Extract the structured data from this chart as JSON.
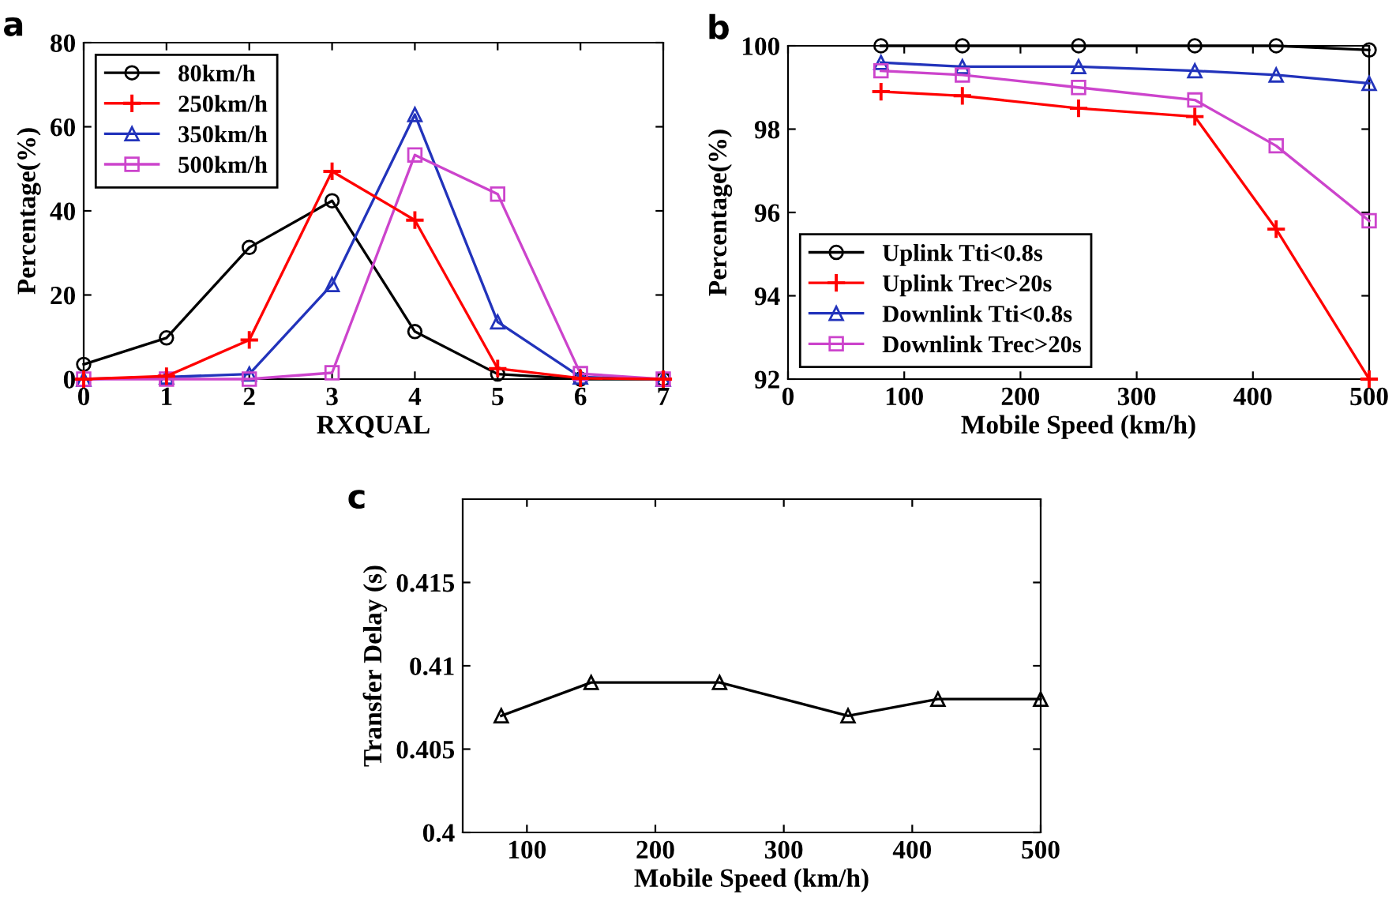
{
  "chart_data": [
    {
      "type": "line",
      "title": "a",
      "xlabel": "RXQUAL",
      "ylabel": "Percentage(%)",
      "x": [
        0,
        1,
        2,
        3,
        4,
        5,
        6,
        7
      ],
      "xlim": [
        0,
        7
      ],
      "xticks": [
        0,
        1,
        2,
        3,
        4,
        5,
        6,
        7
      ],
      "ylim": [
        0,
        80
      ],
      "yticks": [
        0,
        20,
        40,
        60,
        80
      ],
      "grid": false,
      "legend": "top left",
      "series": [
        {
          "name": "80km/h",
          "color": "#000000",
          "marker": "circle",
          "values": [
            3.5,
            9.8,
            31.3,
            42.4,
            11.3,
            1.2,
            0,
            0
          ]
        },
        {
          "name": "250km/h",
          "color": "#ff0000",
          "marker": "cross",
          "values": [
            0,
            0.7,
            9.3,
            49.4,
            37.8,
            2.5,
            0.2,
            0
          ]
        },
        {
          "name": "350km/h",
          "color": "#2233bb",
          "marker": "triangle",
          "values": [
            0,
            0.5,
            1.2,
            22.5,
            62.9,
            13.6,
            0.5,
            0
          ]
        },
        {
          "name": "500km/h",
          "color": "#cc44cc",
          "marker": "square",
          "values": [
            0,
            0,
            0,
            1.5,
            53.3,
            44,
            1.3,
            0
          ]
        }
      ]
    },
    {
      "type": "line",
      "title": "b",
      "xlabel": "Mobile Speed (km/h)",
      "ylabel": "Percentage(%)",
      "x": [
        80,
        150,
        250,
        350,
        420,
        500
      ],
      "xlim": [
        0,
        500
      ],
      "xticks": [
        0,
        100,
        200,
        300,
        400,
        500
      ],
      "ylim": [
        92,
        100
      ],
      "yticks": [
        92,
        94,
        96,
        98,
        100
      ],
      "grid": false,
      "legend": "bottom left",
      "series": [
        {
          "name": "Uplink Tti<0.8s",
          "color": "#000000",
          "marker": "circle",
          "values": [
            100,
            100,
            100,
            100,
            100,
            99.9
          ]
        },
        {
          "name": "Uplink Trec>20s",
          "color": "#ff0000",
          "marker": "cross",
          "values": [
            98.9,
            98.8,
            98.5,
            98.3,
            95.6,
            92
          ]
        },
        {
          "name": "Downlink Tti<0.8s",
          "color": "#2233bb",
          "marker": "triangle",
          "values": [
            99.6,
            99.5,
            99.5,
            99.4,
            99.3,
            99.1
          ]
        },
        {
          "name": "Downlink Trec>20s",
          "color": "#cc44cc",
          "marker": "square",
          "values": [
            99.4,
            99.3,
            99.0,
            98.7,
            97.6,
            95.8
          ]
        }
      ]
    },
    {
      "type": "line",
      "title": "c",
      "xlabel": "Mobile Speed (km/h)",
      "ylabel": "Transfer Delay (s)",
      "x": [
        80,
        150,
        250,
        350,
        420,
        500
      ],
      "xlim": [
        50,
        500
      ],
      "xticks": [
        100,
        200,
        300,
        400,
        500
      ],
      "ylim": [
        0.4,
        0.42
      ],
      "yticks": [
        0.4,
        0.405,
        0.41,
        0.415
      ],
      "grid": false,
      "legend": false,
      "series": [
        {
          "color": "#000000",
          "marker": "triangle",
          "values": [
            0.407,
            0.409,
            0.409,
            0.407,
            0.408,
            0.408
          ]
        }
      ]
    }
  ]
}
